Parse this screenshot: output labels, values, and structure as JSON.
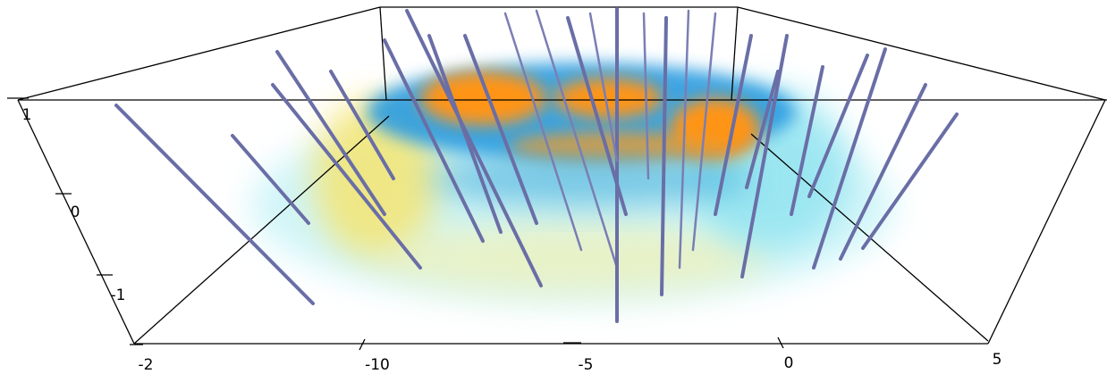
{
  "axes": {
    "vertical": {
      "ticks": [
        "1",
        "0",
        "-1"
      ]
    },
    "bottom": {
      "ticks": [
        "-2",
        "-10",
        "-5",
        "0",
        "5"
      ]
    }
  }
}
